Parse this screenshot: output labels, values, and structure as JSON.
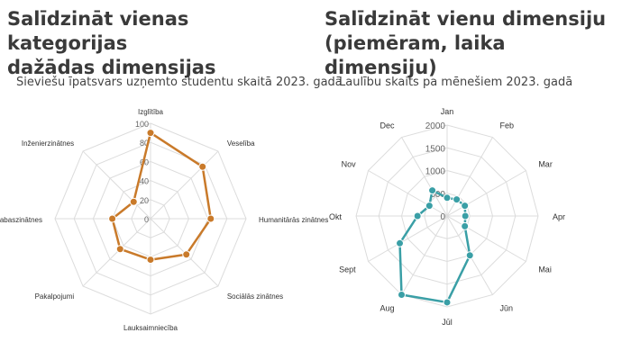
{
  "panels": {
    "left": {
      "title": "Salīdzināt vienas kategorijas\ndažādas dimensijas",
      "subtitle": "Sieviešu īpatsvars uzņemto studentu skaitā 2023. gadā"
    },
    "right": {
      "title": "Salīdzināt vienu dimensiju\n(piemēram, laika dimensiju)",
      "subtitle": "Laulību skaits pa mēnešiem 2023. gadā"
    }
  },
  "chart_data": [
    {
      "type": "radar",
      "title": "Sieviešu īpatsvars uzņemto studentu skaitā 2023. gadā",
      "categories": [
        "Izglītība",
        "Veselība",
        "Humanitārās zinātnes",
        "Sociālās zinātnes",
        "Lauksaimniecība",
        "Pakalpojumi",
        "Dabaszinātnes",
        "Inženierzinātnes"
      ],
      "values": [
        90,
        77,
        63,
        53,
        43,
        45,
        40,
        25
      ],
      "rlim": [
        0,
        100
      ],
      "ticks": [
        0,
        20,
        40,
        60,
        80,
        100
      ],
      "grid": true,
      "color": "#c97a2a"
    },
    {
      "type": "radar",
      "title": "Laulību skaits pa mēnešiem 2023. gadā",
      "categories": [
        "Jan",
        "Feb",
        "Mar",
        "Apr",
        "Mai",
        "Jūn",
        "Jūl",
        "Aug",
        "Sept",
        "Okt",
        "Nov",
        "Dec"
      ],
      "values": [
        400,
        420,
        450,
        400,
        450,
        1000,
        1900,
        2000,
        1200,
        650,
        450,
        650
      ],
      "rlim": [
        0,
        2000
      ],
      "ticks": [
        0,
        500,
        1000,
        1500,
        2000
      ],
      "grid": true,
      "color": "#3a9fa6"
    }
  ]
}
